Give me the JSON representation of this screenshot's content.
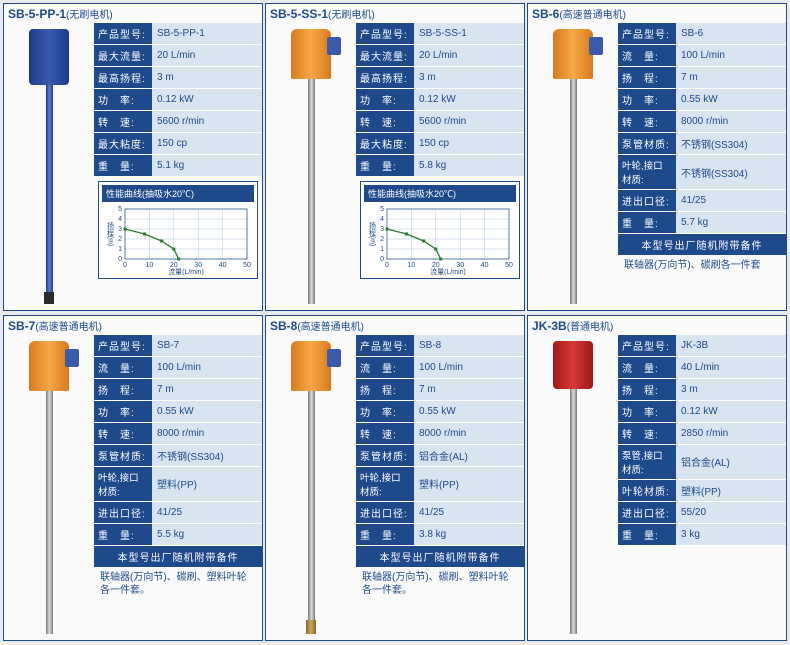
{
  "products": [
    {
      "id": "sb5pp1",
      "title": "SB-5-PP-1",
      "subtitle": "(无刷电机)",
      "motor_color": "blue",
      "shaft_color": "blue",
      "tip": "dark",
      "specs": [
        {
          "label": "产品型号:",
          "value": "SB-5-PP-1"
        },
        {
          "label": "最大流量:",
          "value": "20 L/min"
        },
        {
          "label": "最高扬程:",
          "value": "3 m"
        },
        {
          "label": "功　率:",
          "value": "0.12 kW"
        },
        {
          "label": "转　速:",
          "value": "5600 r/min"
        },
        {
          "label": "最大粘度:",
          "value": "150 cp"
        },
        {
          "label": "重　量:",
          "value": "5.1 kg"
        }
      ],
      "chart": {
        "title": "性能曲线(抽吸水20℃)",
        "xlabel": "流量(L/min)",
        "ylabel": "扬程(m)",
        "x_ticks": [
          0,
          10,
          20,
          30,
          40,
          50
        ],
        "y_ticks": [
          0,
          1,
          2,
          3,
          4,
          5
        ],
        "x_max": 50,
        "y_max": 5,
        "line_color": "#2a7a2a",
        "grid_color": "#b0c4de",
        "points": [
          [
            0,
            3
          ],
          [
            8,
            2.5
          ],
          [
            15,
            1.8
          ],
          [
            20,
            1
          ],
          [
            22,
            0
          ]
        ]
      }
    },
    {
      "id": "sb5ss1",
      "title": "SB-5-SS-1",
      "subtitle": "(无刷电机)",
      "motor_color": "orange",
      "shaft_color": "steel",
      "tip": "",
      "specs": [
        {
          "label": "产品型号:",
          "value": "SB-5-SS-1"
        },
        {
          "label": "最大流量:",
          "value": "20 L/min"
        },
        {
          "label": "最高扬程:",
          "value": "3 m"
        },
        {
          "label": "功　率:",
          "value": "0.12 kW"
        },
        {
          "label": "转　速:",
          "value": "5600 r/min"
        },
        {
          "label": "最大粘度:",
          "value": "150 cp"
        },
        {
          "label": "重　量:",
          "value": "5.8 kg"
        }
      ],
      "chart": {
        "title": "性能曲线(抽吸水20℃)",
        "xlabel": "流量(L/min)",
        "ylabel": "扬程(m)",
        "x_ticks": [
          0,
          10,
          20,
          30,
          40,
          50
        ],
        "y_ticks": [
          0,
          1,
          2,
          3,
          4,
          5
        ],
        "x_max": 50,
        "y_max": 5,
        "line_color": "#2a7a2a",
        "grid_color": "#b0c4de",
        "points": [
          [
            0,
            3
          ],
          [
            8,
            2.5
          ],
          [
            15,
            1.8
          ],
          [
            20,
            1
          ],
          [
            22,
            0
          ]
        ]
      }
    },
    {
      "id": "sb6",
      "title": "SB-6",
      "subtitle": "(高速普通电机)",
      "motor_color": "orange",
      "shaft_color": "steel",
      "tip": "",
      "specs": [
        {
          "label": "产品型号:",
          "value": "SB-6"
        },
        {
          "label": "流　量:",
          "value": "100 L/min"
        },
        {
          "label": "扬　程:",
          "value": "7 m"
        },
        {
          "label": "功　率:",
          "value": "0.55 kW"
        },
        {
          "label": "转　速:",
          "value": "8000 r/min"
        },
        {
          "label": "泵管材质:",
          "value": "不锈钢(SS304)"
        },
        {
          "label": "叶轮,接口材质:",
          "value": "不锈钢(SS304)",
          "wide": true
        },
        {
          "label": "进出口径:",
          "value": "41/25"
        },
        {
          "label": "重　量:",
          "value": "5.7 kg"
        }
      ],
      "footer_bar": "本型号出厂随机附带备件",
      "footer_note": "联轴器(万向节)、碳刷各一件套"
    },
    {
      "id": "sb7",
      "title": "SB-7",
      "subtitle": "(高速普通电机)",
      "motor_color": "orange",
      "shaft_color": "steel",
      "tip": "",
      "specs": [
        {
          "label": "产品型号:",
          "value": "SB-7"
        },
        {
          "label": "流　量:",
          "value": "100 L/min"
        },
        {
          "label": "扬　程:",
          "value": "7 m"
        },
        {
          "label": "功　率:",
          "value": "0.55 kW"
        },
        {
          "label": "转　速:",
          "value": "8000 r/min"
        },
        {
          "label": "泵管材质:",
          "value": "不锈钢(SS304)"
        },
        {
          "label": "叶轮,接口材质:",
          "value": "塑料(PP)",
          "wide": true
        },
        {
          "label": "进出口径:",
          "value": "41/25"
        },
        {
          "label": "重　量:",
          "value": "5.5 kg"
        }
      ],
      "footer_bar": "本型号出厂随机附带备件",
      "footer_note": "联轴器(万向节)、碳刷、塑料叶轮各一件套。"
    },
    {
      "id": "sb8",
      "title": "SB-8",
      "subtitle": "(高速普通电机)",
      "motor_color": "orange",
      "shaft_color": "steel",
      "tip": "brass",
      "specs": [
        {
          "label": "产品型号:",
          "value": "SB-8"
        },
        {
          "label": "流　量:",
          "value": "100 L/min"
        },
        {
          "label": "扬　程:",
          "value": "7 m"
        },
        {
          "label": "功　率:",
          "value": "0.55 kW"
        },
        {
          "label": "转　速:",
          "value": "8000 r/min"
        },
        {
          "label": "泵管材质:",
          "value": "铝合金(AL)"
        },
        {
          "label": "叶轮,接口材质:",
          "value": "塑料(PP)",
          "wide": true
        },
        {
          "label": "进出口径:",
          "value": "41/25"
        },
        {
          "label": "重　量:",
          "value": "3.8 kg"
        }
      ],
      "footer_bar": "本型号出厂随机附带备件",
      "footer_note": "联轴器(万向节)、碳刷、塑料叶轮各一件套。"
    },
    {
      "id": "jk3b",
      "title": "JK-3B",
      "subtitle": "(普通电机)",
      "motor_color": "red",
      "shaft_color": "steel",
      "tip": "",
      "specs": [
        {
          "label": "产品型号:",
          "value": "JK-3B"
        },
        {
          "label": "流　量:",
          "value": "40 L/min"
        },
        {
          "label": "扬　程:",
          "value": "3 m"
        },
        {
          "label": "功　率:",
          "value": "0.12 kW"
        },
        {
          "label": "转　速:",
          "value": "2850 r/min"
        },
        {
          "label": "泵管,接口材质:",
          "value": "铝合金(AL)",
          "wide": true
        },
        {
          "label": "叶轮材质:",
          "value": "塑料(PP)"
        },
        {
          "label": "进出口径:",
          "value": "55/20"
        },
        {
          "label": "重　量:",
          "value": "3 kg"
        }
      ]
    }
  ]
}
